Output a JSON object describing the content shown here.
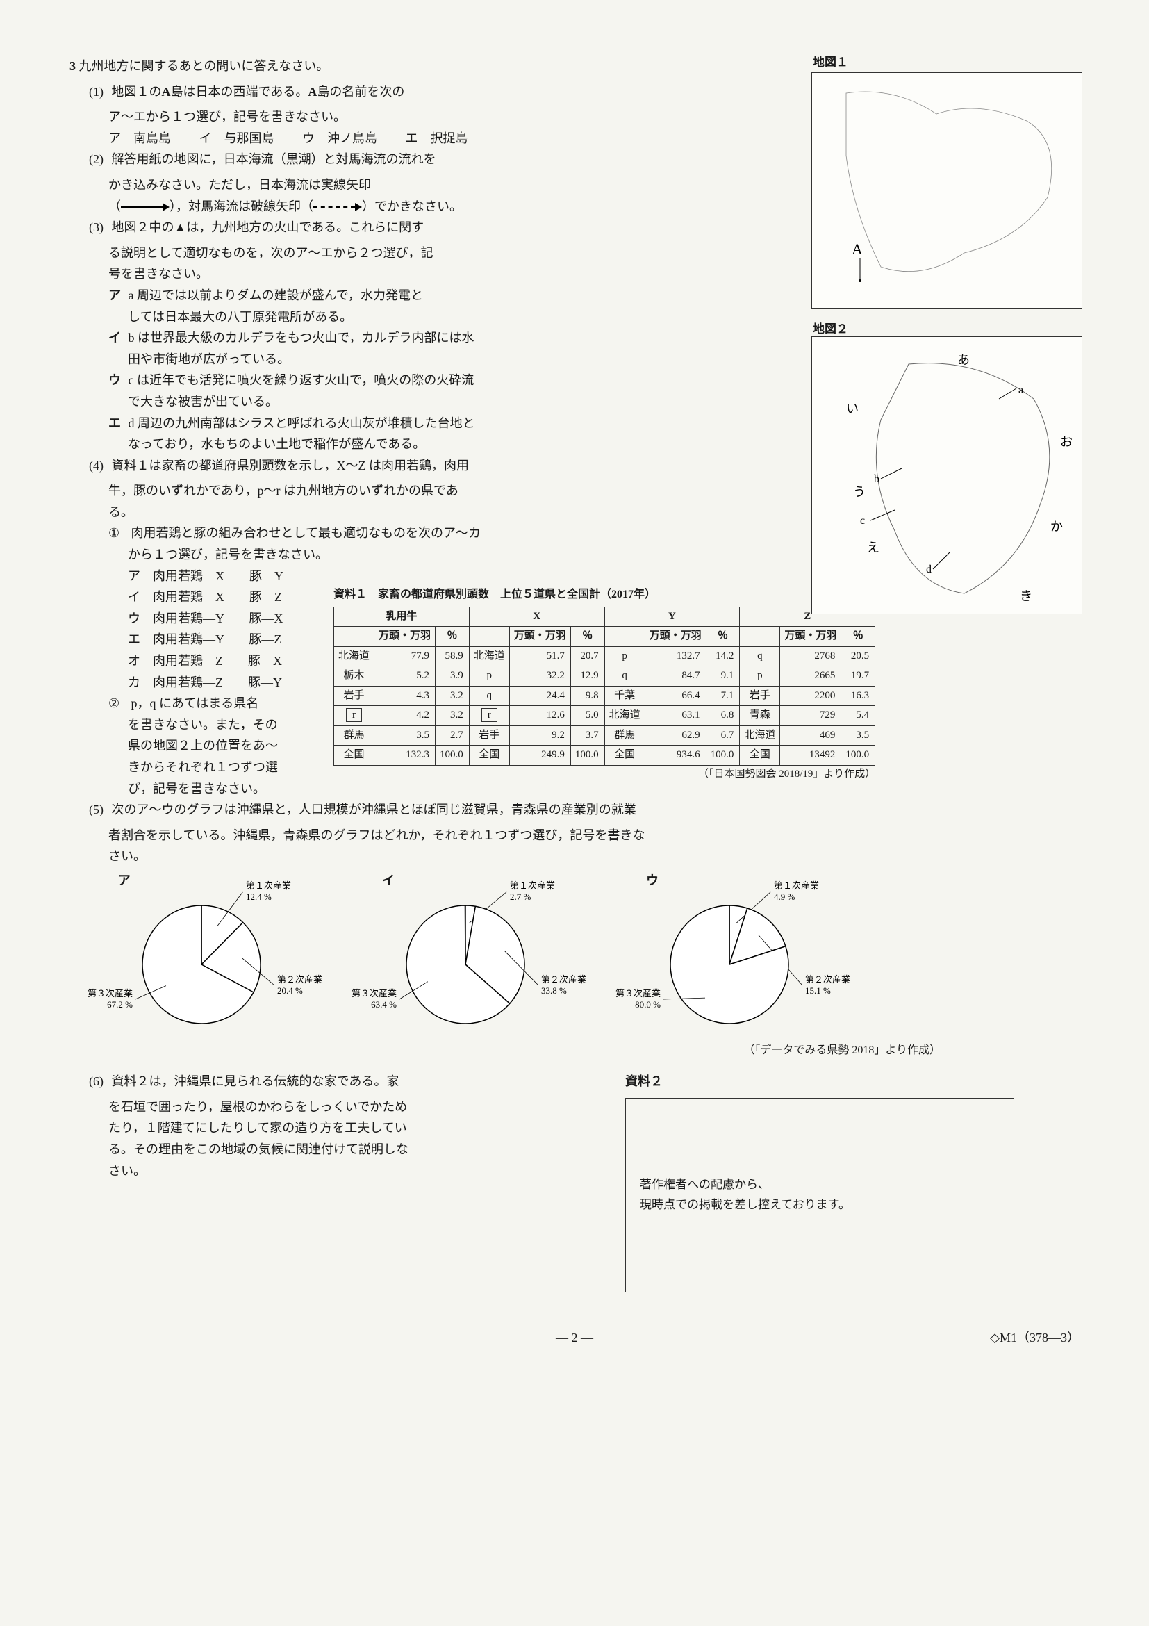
{
  "main_question": {
    "number": "3",
    "text": "九州地方に関するあとの問いに答えなさい。"
  },
  "map1_label": "地図１",
  "map2_label": "地図２",
  "map1_letter": "A",
  "map2_letters": {
    "a": "a",
    "b": "b",
    "c": "c",
    "d": "d",
    "i": "い",
    "u": "う",
    "e": "え",
    "o": "お",
    "ka": "か",
    "ki": "き",
    "a_hira": "あ"
  },
  "q1": {
    "num": "(1)",
    "text1": "地図１の",
    "bold1": "A",
    "text2": "島は日本の西端である。",
    "bold2": "A",
    "text3": "島の名前を次の",
    "line2": "ア～エから１つ選び，記号を書きなさい。",
    "choices": {
      "a": "ア　南鳥島",
      "i": "イ　与那国島",
      "u": "ウ　沖ノ鳥島",
      "e": "エ　択捉島"
    }
  },
  "q2": {
    "num": "(2)",
    "text1": "解答用紙の地図に，日本海流（黒潮）と対馬海流の流れを",
    "text2": "かき込みなさい。ただし，日本海流は実線矢印",
    "paren_open": "（",
    "paren_close": "），対馬海流は破線矢印（",
    "paren_end": "）でかきなさい。"
  },
  "q3": {
    "num": "(3)",
    "text1": "地図２中の▲は，九州地方の火山である。これらに関す",
    "text2": "る説明として適切なものを，次のア～エから２つ選び，記",
    "text3": "号を書きなさい。",
    "choice_a": {
      "label": "ア",
      "text1": "a 周辺では以前よりダムの建設が盛んで，水力発電と",
      "text2": "しては日本最大の八丁原発電所がある。"
    },
    "choice_i": {
      "label": "イ",
      "text1": "b は世界最大級のカルデラをもつ火山で，カルデラ内部には水",
      "text2": "田や市街地が広がっている。"
    },
    "choice_u": {
      "label": "ウ",
      "text1": "c は近年でも活発に噴火を繰り返す火山で，噴火の際の火砕流",
      "text2": "で大きな被害が出ている。"
    },
    "choice_e": {
      "label": "エ",
      "text1": "d 周辺の九州南部はシラスと呼ばれる火山灰が堆積した台地と",
      "text2": "なっており，水もちのよい土地で稲作が盛んである。"
    }
  },
  "q4": {
    "num": "(4)",
    "text1": "資料１は家畜の都道府県別頭数を示し，X～Z は肉用若鶏，肉用",
    "text2": "牛，豚のいずれかであり，p～r は九州地方のいずれかの県であ",
    "text3": "る。",
    "sub1": {
      "num": "①",
      "text1": "肉用若鶏と豚の組み合わせとして最も適切なものを次のア～カ",
      "text2": "から１つ選び，記号を書きなさい。"
    },
    "sub1_choices": {
      "a": "ア　肉用若鶏―X　　豚―Y",
      "i": "イ　肉用若鶏―X　　豚―Z",
      "u": "ウ　肉用若鶏―Y　　豚―X",
      "e": "エ　肉用若鶏―Y　　豚―Z",
      "o": "オ　肉用若鶏―Z　　豚―X",
      "ka": "カ　肉用若鶏―Z　　豚―Y"
    },
    "sub2": {
      "num": "②",
      "text1": "p，q にあてはまる県名",
      "text2": "を書きなさい。また，その",
      "text3": "県の地図２上の位置をあ～",
      "text4": "きからそれぞれ１つずつ選",
      "text5": "び，記号を書きなさい。"
    }
  },
  "table1": {
    "title": "資料１　家畜の都道府県別頭数　上位５道県と全国計（2017年）",
    "headers": {
      "cow": "乳用牛",
      "x": "X",
      "y": "Y",
      "z": "Z",
      "unit": "万頭・万羽",
      "pct": "％"
    },
    "rows": [
      {
        "c1": "北海道",
        "v1": "77.9",
        "p1": "58.9",
        "c2": "北海道",
        "v2": "51.7",
        "p2": "20.7",
        "c3": "p",
        "v3": "132.7",
        "p3": "14.2",
        "c4": "q",
        "v4": "2768",
        "p4": "20.5"
      },
      {
        "c1": "栃木",
        "v1": "5.2",
        "p1": "3.9",
        "c2": "p",
        "v2": "32.2",
        "p2": "12.9",
        "c3": "q",
        "v3": "84.7",
        "p3": "9.1",
        "c4": "p",
        "v4": "2665",
        "p4": "19.7"
      },
      {
        "c1": "岩手",
        "v1": "4.3",
        "p1": "3.2",
        "c2": "q",
        "v2": "24.4",
        "p2": "9.8",
        "c3": "千葉",
        "v3": "66.4",
        "p3": "7.1",
        "c4": "岩手",
        "v4": "2200",
        "p4": "16.3"
      },
      {
        "c1": "r",
        "v1": "4.2",
        "p1": "3.2",
        "c2": "r",
        "v2": "12.6",
        "p2": "5.0",
        "c3": "北海道",
        "v3": "63.1",
        "p3": "6.8",
        "c4": "青森",
        "v4": "729",
        "p4": "5.4"
      },
      {
        "c1": "群馬",
        "v1": "3.5",
        "p1": "2.7",
        "c2": "岩手",
        "v2": "9.2",
        "p2": "3.7",
        "c3": "群馬",
        "v3": "62.9",
        "p3": "6.7",
        "c4": "北海道",
        "v4": "469",
        "p4": "3.5"
      },
      {
        "c1": "全国",
        "v1": "132.3",
        "p1": "100.0",
        "c2": "全国",
        "v2": "249.9",
        "p2": "100.0",
        "c3": "全国",
        "v3": "934.6",
        "p3": "100.0",
        "c4": "全国",
        "v4": "13492",
        "p4": "100.0"
      }
    ],
    "source": "（「日本国勢図会 2018/19」より作成）"
  },
  "q5": {
    "num": "(5)",
    "text1": "次のア～ウのグラフは沖縄県と，人口規模が沖縄県とほぼ同じ滋賀県，青森県の産業別の就業",
    "text2": "者割合を示している。沖縄県，青森県のグラフはどれか，それぞれ１つずつ選び，記号を書きな",
    "text3": "さい。"
  },
  "pies": {
    "a": {
      "label": "ア",
      "slices": [
        {
          "name": "第１次産業",
          "pct": "12.4 %",
          "value": 12.4,
          "color": "#ffffff"
        },
        {
          "name": "第２次産業",
          "pct": "20.4 %",
          "value": 20.4,
          "color": "#ffffff"
        },
        {
          "name": "第３次産業",
          "pct": "67.2 %",
          "value": 67.2,
          "color": "#ffffff"
        }
      ]
    },
    "i": {
      "label": "イ",
      "slices": [
        {
          "name": "第１次産業",
          "pct": "2.7 %",
          "value": 2.7,
          "color": "#ffffff"
        },
        {
          "name": "第２次産業",
          "pct": "33.8 %",
          "value": 33.8,
          "color": "#ffffff"
        },
        {
          "name": "第３次産業",
          "pct": "63.4 %",
          "value": 63.4,
          "color": "#ffffff"
        }
      ]
    },
    "u": {
      "label": "ウ",
      "slices": [
        {
          "name": "第１次産業",
          "pct": "4.9 %",
          "value": 4.9,
          "color": "#ffffff"
        },
        {
          "name": "第２次産業",
          "pct": "15.1 %",
          "value": 15.1,
          "color": "#ffffff"
        },
        {
          "name": "第３次産業",
          "pct": "80.0 %",
          "value": 80.0,
          "color": "#ffffff"
        }
      ]
    },
    "source": "（「データでみる県勢 2018」より作成）"
  },
  "q6": {
    "num": "(6)",
    "text1": "資料２は，沖縄県に見られる伝統的な家である。家",
    "text2": "を石垣で囲ったり，屋根のかわらをしっくいでかため",
    "text3": "たり，１階建てにしたりして家の造り方を工夫してい",
    "text4": "る。その理由をこの地域の気候に関連付けて説明しな",
    "text5": "さい。"
  },
  "resource2": {
    "label": "資料２",
    "text1": "著作権者への配慮から、",
    "text2": "現時点での掲載を差し控えております。"
  },
  "footer": {
    "page": "― 2 ―",
    "code": "◇M1（378―3）"
  },
  "pie_style": {
    "radius": 85,
    "stroke": "#000000",
    "stroke_width": 1.5,
    "bg": "#ffffff"
  }
}
